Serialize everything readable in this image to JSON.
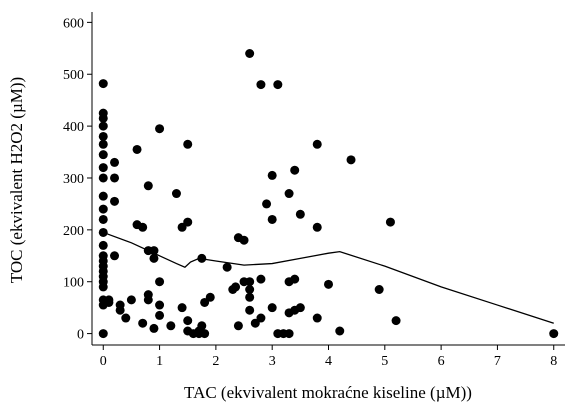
{
  "chart_data": {
    "type": "scatter",
    "xlabel": "TAC (ekvivalent mokraćne kiseline (µM))",
    "ylabel": "TOC (ekvivalent H2O2 (µM))",
    "color": "#000000",
    "x": [
      0,
      0,
      0,
      0,
      0,
      0,
      0,
      0,
      0,
      0,
      0,
      0,
      0,
      0,
      0,
      0,
      0,
      0,
      0,
      0,
      0,
      0,
      0,
      0,
      0.1,
      0.1,
      0.2,
      0.2,
      0.2,
      0.2,
      0.3,
      0.3,
      0.4,
      0.5,
      0.6,
      0.6,
      0.7,
      0.7,
      0.8,
      0.8,
      0.8,
      0.8,
      0.9,
      0.9,
      0.9,
      1.0,
      1.0,
      1.0,
      1.0,
      1.2,
      1.3,
      1.4,
      1.4,
      1.5,
      1.5,
      1.5,
      1.5,
      1.6,
      1.7,
      1.7,
      1.75,
      1.75,
      1.8,
      1.8,
      1.9,
      2.2,
      2.3,
      2.35,
      2.4,
      2.4,
      2.5,
      2.5,
      2.6,
      2.6,
      2.6,
      2.6,
      2.6,
      2.7,
      2.8,
      2.8,
      2.8,
      2.9,
      3.0,
      3.0,
      3.0,
      3.1,
      3.1,
      3.2,
      3.3,
      3.3,
      3.3,
      3.3,
      3.4,
      3.4,
      3.4,
      3.5,
      3.5,
      3.8,
      3.8,
      3.8,
      4.0,
      4.2,
      4.4,
      4.9,
      5.1,
      5.2,
      8.0
    ],
    "values": [
      482,
      425,
      415,
      400,
      380,
      365,
      345,
      320,
      300,
      265,
      240,
      220,
      195,
      170,
      150,
      140,
      130,
      120,
      110,
      100,
      90,
      65,
      55,
      0,
      60,
      65,
      330,
      300,
      255,
      150,
      55,
      45,
      30,
      65,
      355,
      210,
      205,
      20,
      285,
      160,
      75,
      65,
      160,
      145,
      10,
      395,
      100,
      55,
      35,
      15,
      270,
      205,
      50,
      365,
      215,
      25,
      5,
      0,
      0,
      5,
      145,
      15,
      60,
      0,
      70,
      128,
      85,
      90,
      185,
      15,
      180,
      100,
      540,
      100,
      85,
      70,
      45,
      20,
      480,
      105,
      30,
      250,
      305,
      220,
      50,
      480,
      0,
      0,
      270,
      100,
      40,
      0,
      315,
      105,
      45,
      230,
      50,
      365,
      205,
      30,
      95,
      5,
      335,
      85,
      215,
      25,
      0
    ],
    "fit": {
      "color": "#000000",
      "x": [
        0,
        0.5,
        1.0,
        1.3,
        1.45,
        1.55,
        1.7,
        2.0,
        2.5,
        3.0,
        3.5,
        4.0,
        4.2,
        5,
        6,
        7,
        8
      ],
      "values": [
        195,
        175,
        150,
        135,
        128,
        138,
        145,
        140,
        132,
        135,
        145,
        155,
        158,
        130,
        90,
        55,
        20
      ]
    },
    "xlim": [
      -0.2,
      8.2
    ],
    "ylim": [
      -22,
      620
    ],
    "xticks": [
      0,
      1,
      2,
      3,
      4,
      5,
      6,
      7,
      8
    ],
    "yticks": [
      0,
      100,
      200,
      300,
      400,
      500,
      600
    ]
  }
}
